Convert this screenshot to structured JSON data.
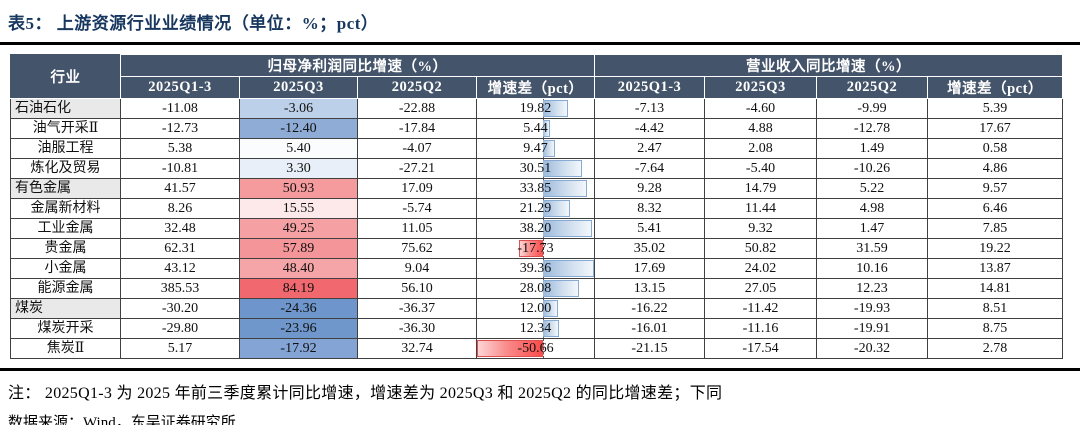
{
  "title": "表5：  上游资源行业业绩情况（单位：%；pct）",
  "colors": {
    "header_bg": "#44546A",
    "title_text": "#17375E",
    "parent_row_bg": "#E9E9E9",
    "bar_positive": "#9BB9DC",
    "bar_negative": "#FB4A4A"
  },
  "table": {
    "header": {
      "industry": "行业",
      "groups": [
        "归母净利润同比增速（%）",
        "营业收入同比增速（%）"
      ],
      "cols": [
        "2025Q1-3",
        "2025Q3",
        "2025Q2",
        "增速差（pct）"
      ]
    },
    "bars": {
      "axis_pct": 56,
      "span": 90
    },
    "rows": [
      {
        "label": "石油石化",
        "level": "parent",
        "q3_bg": "#BDD0E9",
        "profit": [
          "-11.08",
          "-3.06",
          "-22.88",
          "19.82"
        ],
        "revenue": [
          "-7.13",
          "-4.60",
          "-9.99",
          "5.39"
        ]
      },
      {
        "label": "油气开采Ⅱ",
        "level": "child",
        "q3_bg": "#8FACD6",
        "profit": [
          "-12.73",
          "-12.40",
          "-17.84",
          "5.44"
        ],
        "revenue": [
          "-4.42",
          "4.88",
          "-12.78",
          "17.67"
        ]
      },
      {
        "label": "油服工程",
        "level": "child",
        "q3_bg": "#FBFCFE",
        "profit": [
          "5.38",
          "5.40",
          "-4.07",
          "9.47"
        ],
        "revenue": [
          "2.47",
          "2.08",
          "1.49",
          "0.58"
        ]
      },
      {
        "label": "炼化及贸易",
        "level": "child",
        "q3_bg": "#E9EFF9",
        "profit": [
          "-10.81",
          "3.30",
          "-27.21",
          "30.51"
        ],
        "revenue": [
          "-7.64",
          "-5.40",
          "-10.26",
          "4.86"
        ]
      },
      {
        "label": "有色金属",
        "level": "parent",
        "q3_bg": "#F59B9E",
        "profit": [
          "41.57",
          "50.93",
          "17.09",
          "33.85"
        ],
        "revenue": [
          "9.28",
          "14.79",
          "5.22",
          "9.57"
        ]
      },
      {
        "label": "金属新材料",
        "level": "child",
        "q3_bg": "#FDE9EA",
        "profit": [
          "8.26",
          "15.55",
          "-5.74",
          "21.29"
        ],
        "revenue": [
          "8.32",
          "11.44",
          "4.98",
          "6.46"
        ]
      },
      {
        "label": "工业金属",
        "level": "child",
        "q3_bg": "#F5A1A4",
        "profit": [
          "32.48",
          "49.25",
          "11.05",
          "38.20"
        ],
        "revenue": [
          "5.41",
          "9.32",
          "1.47",
          "7.85"
        ]
      },
      {
        "label": "贵金属",
        "level": "child",
        "q3_bg": "#F49599",
        "profit": [
          "62.31",
          "57.89",
          "75.62",
          "-17.73"
        ],
        "revenue": [
          "35.02",
          "50.82",
          "31.59",
          "19.22"
        ]
      },
      {
        "label": "小金属",
        "level": "child",
        "q3_bg": "#F5A4A7",
        "profit": [
          "43.12",
          "48.40",
          "9.04",
          "39.36"
        ],
        "revenue": [
          "17.69",
          "24.02",
          "10.16",
          "13.87"
        ]
      },
      {
        "label": "能源金属",
        "level": "child",
        "q3_bg": "#F1696F",
        "profit": [
          "385.53",
          "84.19",
          "56.10",
          "28.08"
        ],
        "revenue": [
          "13.15",
          "27.05",
          "12.23",
          "14.81"
        ]
      },
      {
        "label": "煤炭",
        "level": "parent",
        "q3_bg": "#6E96CC",
        "profit": [
          "-30.20",
          "-24.36",
          "-36.37",
          "12.00"
        ],
        "revenue": [
          "-16.22",
          "-11.42",
          "-19.93",
          "8.51"
        ]
      },
      {
        "label": "煤炭开采",
        "level": "child",
        "q3_bg": "#6F97CC",
        "profit": [
          "-29.80",
          "-23.96",
          "-36.30",
          "12.34"
        ],
        "revenue": [
          "-16.01",
          "-11.16",
          "-19.91",
          "8.75"
        ]
      },
      {
        "label": "焦炭Ⅱ",
        "level": "child",
        "q3_bg": "#84A4D5",
        "profit": [
          "5.17",
          "-17.92",
          "32.74",
          "-50.66"
        ],
        "revenue": [
          "-21.15",
          "-17.54",
          "-20.32",
          "2.78"
        ]
      }
    ]
  },
  "note": "注：  2025Q1-3 为 2025 年前三季度累计同比增速，增速差为 2025Q3 和 2025Q2 的同比增速差；下同",
  "source": "数据来源：Wind，东吴证券研究所"
}
